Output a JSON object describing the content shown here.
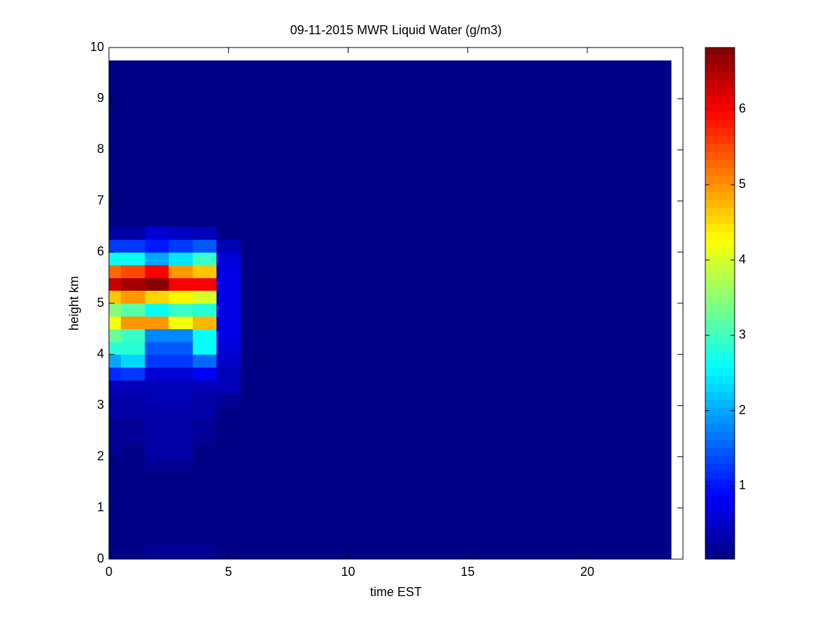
{
  "chart_data": {
    "type": "heatmap",
    "title": "09-11-2015 MWR Liquid Water (g/m3)",
    "xlabel": "time EST",
    "ylabel": "height km",
    "colormap": "jet",
    "x_edges": [
      0,
      0.5,
      1.5,
      2.5,
      3.5,
      4.5,
      5.5,
      23.5
    ],
    "y_edges": [
      0,
      0.25,
      0.5,
      0.75,
      1,
      1.25,
      1.5,
      1.75,
      2,
      2.25,
      2.5,
      2.75,
      3,
      3.25,
      3.5,
      3.75,
      4,
      4.25,
      4.5,
      4.75,
      5,
      5.25,
      5.5,
      5.75,
      6,
      6.25,
      6.5,
      9.75
    ],
    "z": [
      [
        0.05,
        0.05,
        0.2,
        0.2,
        0.15,
        0.03,
        0.03
      ],
      [
        0.05,
        0.05,
        0.08,
        0.08,
        0.05,
        0.03,
        0.03
      ],
      [
        0.05,
        0.05,
        0.05,
        0.05,
        0.05,
        0.03,
        0.03
      ],
      [
        0.05,
        0.05,
        0.05,
        0.05,
        0.05,
        0.03,
        0.03
      ],
      [
        0.05,
        0.05,
        0.05,
        0.05,
        0.05,
        0.03,
        0.03
      ],
      [
        0.06,
        0.06,
        0.08,
        0.08,
        0.05,
        0.03,
        0.03
      ],
      [
        0.08,
        0.08,
        0.1,
        0.1,
        0.06,
        0.03,
        0.03
      ],
      [
        0.1,
        0.12,
        0.2,
        0.2,
        0.1,
        0.03,
        0.03
      ],
      [
        0.15,
        0.12,
        0.25,
        0.25,
        0.12,
        0.03,
        0.03
      ],
      [
        0.2,
        0.15,
        0.3,
        0.3,
        0.15,
        0.03,
        0.03
      ],
      [
        0.2,
        0.2,
        0.3,
        0.3,
        0.2,
        0.03,
        0.03
      ],
      [
        0.25,
        0.25,
        0.3,
        0.3,
        0.25,
        0.03,
        0.03
      ],
      [
        0.3,
        0.3,
        0.35,
        0.35,
        0.3,
        0.15,
        0.03
      ],
      [
        0.4,
        0.4,
        0.4,
        0.4,
        0.4,
        0.35,
        0.03
      ],
      [
        1.1,
        1.2,
        0.6,
        0.6,
        0.8,
        0.4,
        0.03
      ],
      [
        2.0,
        2.3,
        1.2,
        1.2,
        1.6,
        0.5,
        0.03
      ],
      [
        2.8,
        2.8,
        1.5,
        1.5,
        2.6,
        0.6,
        0.03
      ],
      [
        3.3,
        3.0,
        1.8,
        1.8,
        2.6,
        0.7,
        0.03
      ],
      [
        4.2,
        5.0,
        5.0,
        4.2,
        4.8,
        0.7,
        0.03
      ],
      [
        3.5,
        3.2,
        2.6,
        3.0,
        2.8,
        0.7,
        0.03
      ],
      [
        4.6,
        5.0,
        4.5,
        4.3,
        4.0,
        0.7,
        0.03
      ],
      [
        6.3,
        6.6,
        6.8,
        6.0,
        6.0,
        0.7,
        0.03
      ],
      [
        5.3,
        5.5,
        6.0,
        5.0,
        4.6,
        0.7,
        0.03
      ],
      [
        2.6,
        2.6,
        2.0,
        2.4,
        3.0,
        0.6,
        0.03
      ],
      [
        1.2,
        1.3,
        1.0,
        1.2,
        1.5,
        0.4,
        0.03
      ],
      [
        0.3,
        0.3,
        0.6,
        0.5,
        0.4,
        0.03,
        0.03
      ],
      [
        0.03,
        0.03,
        0.03,
        0.03,
        0.03,
        0.03,
        0.03
      ]
    ],
    "xlim": [
      0,
      24
    ],
    "xticks": [
      0,
      5,
      10,
      15,
      20
    ],
    "ylim": [
      0,
      10
    ],
    "yticks": [
      0,
      1,
      2,
      3,
      4,
      5,
      6,
      7,
      8,
      9,
      10
    ],
    "clim": [
      0.03,
      6.82
    ],
    "cticks": [
      1,
      2,
      3,
      4,
      5,
      6
    ]
  }
}
